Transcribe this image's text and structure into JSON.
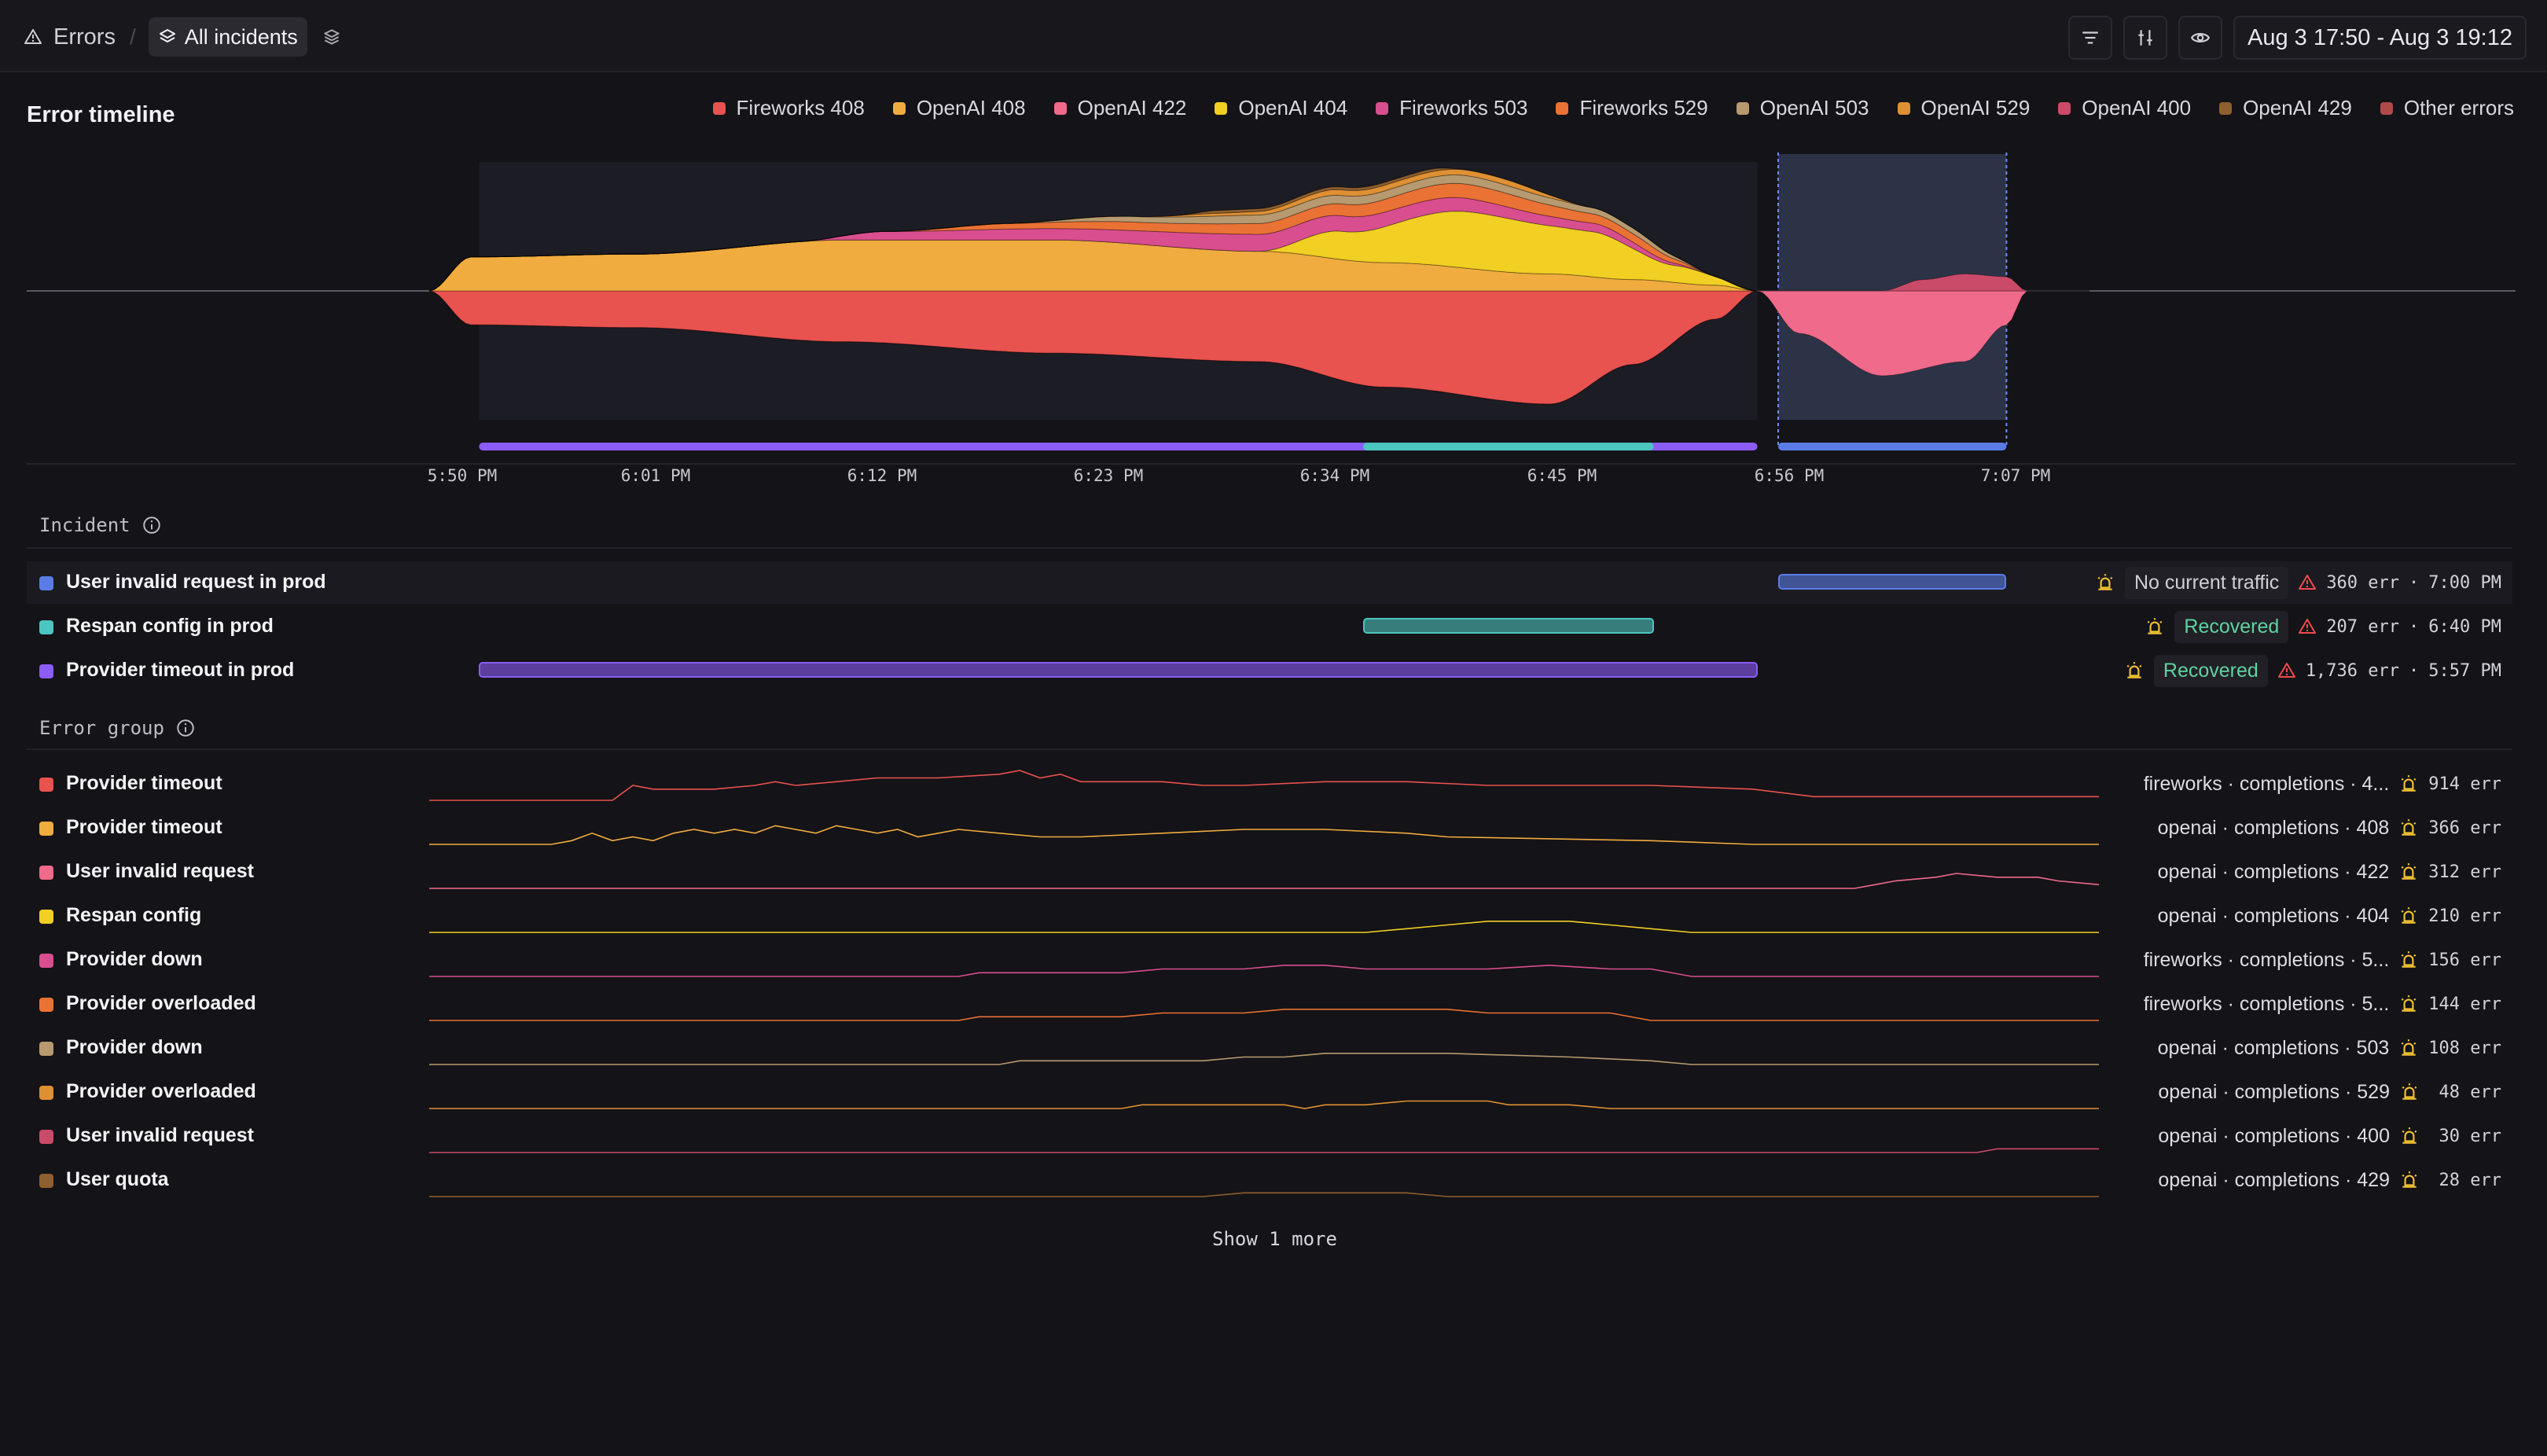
{
  "header": {
    "breadcrumb_root": "Errors",
    "incidents_pill": "All incidents",
    "time_range": "Aug 3 17:50 - Aug 3 19:12",
    "icons": [
      "warning-icon",
      "layers-icon",
      "layers-stack-icon",
      "filter-icon",
      "adjust-icon",
      "eye-icon"
    ]
  },
  "timeline": {
    "title": "Error timeline",
    "legend": [
      {
        "label": "Fireworks 408",
        "color": "#e8524f"
      },
      {
        "label": "OpenAI 408",
        "color": "#f0ac3f"
      },
      {
        "label": "OpenAI 422",
        "color": "#f06a8b"
      },
      {
        "label": "OpenAI 404",
        "color": "#f1cf23"
      },
      {
        "label": "Fireworks 503",
        "color": "#d94e8f"
      },
      {
        "label": "Fireworks 529",
        "color": "#ea7234"
      },
      {
        "label": "OpenAI 503",
        "color": "#b89a70"
      },
      {
        "label": "OpenAI 529",
        "color": "#de9033"
      },
      {
        "label": "OpenAI 400",
        "color": "#c94b69"
      },
      {
        "label": "OpenAI 429",
        "color": "#8e5f2f"
      },
      {
        "label": "Other errors",
        "color": "#b04a4a"
      }
    ],
    "x_ticks": [
      "5:50 PM",
      "6:01 PM",
      "6:12 PM",
      "6:23 PM",
      "6:34 PM",
      "6:45 PM",
      "6:56 PM",
      "7:07 PM"
    ]
  },
  "chart_data": {
    "type": "area",
    "title": "Error timeline",
    "x_start": "17:50",
    "x_end": "19:12",
    "x_tick_labels": [
      "5:50 PM",
      "6:01 PM",
      "6:12 PM",
      "6:23 PM",
      "6:34 PM",
      "6:45 PM",
      "6:56 PM",
      "7:07 PM"
    ],
    "layout": "streamgraph",
    "series": [
      {
        "name": "Fireworks 408",
        "color": "#e8524f",
        "upper": false,
        "values": [
          [
            0,
            0
          ],
          [
            2,
            12
          ],
          [
            10,
            13
          ],
          [
            20,
            18
          ],
          [
            30,
            22
          ],
          [
            40,
            25
          ],
          [
            46,
            34
          ],
          [
            54,
            40
          ],
          [
            58,
            26
          ],
          [
            62,
            10
          ],
          [
            64,
            0
          ],
          [
            80,
            0
          ]
        ]
      },
      {
        "name": "OpenAI 408",
        "color": "#f0ac3f",
        "upper": true,
        "values": [
          [
            0,
            0
          ],
          [
            2,
            12
          ],
          [
            10,
            13
          ],
          [
            20,
            18
          ],
          [
            30,
            18
          ],
          [
            40,
            14
          ],
          [
            46,
            10
          ],
          [
            54,
            6
          ],
          [
            58,
            4
          ],
          [
            62,
            2
          ],
          [
            64,
            0
          ],
          [
            80,
            0
          ]
        ]
      },
      {
        "name": "OpenAI 404",
        "color": "#f1cf23",
        "upper": true,
        "values": [
          [
            0,
            0
          ],
          [
            40,
            0
          ],
          [
            44,
            10
          ],
          [
            50,
            20
          ],
          [
            56,
            16
          ],
          [
            60,
            6
          ],
          [
            64,
            0
          ],
          [
            80,
            0
          ]
        ]
      },
      {
        "name": "Fireworks 503",
        "color": "#d94e8f",
        "upper": true,
        "values": [
          [
            0,
            0
          ],
          [
            18,
            0
          ],
          [
            22,
            3
          ],
          [
            30,
            4
          ],
          [
            40,
            6
          ],
          [
            48,
            5
          ],
          [
            56,
            3
          ],
          [
            62,
            0
          ],
          [
            80,
            0
          ]
        ]
      },
      {
        "name": "Fireworks 529",
        "color": "#ea7234",
        "upper": true,
        "values": [
          [
            0,
            0
          ],
          [
            22,
            0
          ],
          [
            28,
            2
          ],
          [
            34,
            3
          ],
          [
            42,
            4
          ],
          [
            50,
            5
          ],
          [
            58,
            3
          ],
          [
            62,
            0
          ],
          [
            80,
            0
          ]
        ]
      },
      {
        "name": "OpenAI 503",
        "color": "#b89a70",
        "upper": true,
        "values": [
          [
            0,
            0
          ],
          [
            28,
            0
          ],
          [
            34,
            2
          ],
          [
            40,
            3
          ],
          [
            50,
            3
          ],
          [
            58,
            2
          ],
          [
            62,
            0
          ],
          [
            80,
            0
          ]
        ]
      },
      {
        "name": "OpenAI 529",
        "color": "#de9033",
        "upper": true,
        "values": [
          [
            0,
            0
          ],
          [
            34,
            0
          ],
          [
            38,
            1
          ],
          [
            44,
            2
          ],
          [
            52,
            2
          ],
          [
            56,
            0
          ],
          [
            80,
            0
          ]
        ]
      },
      {
        "name": "OpenAI 429",
        "color": "#8e5f2f",
        "upper": true,
        "values": [
          [
            0,
            0
          ],
          [
            36,
            0
          ],
          [
            38,
            1
          ],
          [
            48,
            1
          ],
          [
            50,
            0
          ],
          [
            80,
            0
          ]
        ]
      },
      {
        "name": "OpenAI 422",
        "color": "#f06a8b",
        "upper": false,
        "values": [
          [
            0,
            0
          ],
          [
            64,
            0
          ],
          [
            66,
            15
          ],
          [
            70,
            30
          ],
          [
            74,
            25
          ],
          [
            76,
            12
          ],
          [
            77,
            0
          ],
          [
            80,
            0
          ]
        ]
      },
      {
        "name": "OpenAI 400",
        "color": "#c94b69",
        "upper": true,
        "values": [
          [
            0,
            0
          ],
          [
            70,
            0
          ],
          [
            72,
            4
          ],
          [
            74,
            6
          ],
          [
            76,
            5
          ],
          [
            77,
            0
          ],
          [
            80,
            0
          ]
        ]
      }
    ],
    "incident_bands": [
      {
        "name": "Provider timeout in prod",
        "start": 2.4,
        "end": 64,
        "color": "#8b5cf6"
      },
      {
        "name": "Respan config in prod",
        "start": 45,
        "end": 59,
        "color": "#4cc5c0"
      },
      {
        "name": "User invalid request in prod",
        "start": 65,
        "end": 76,
        "color": "#5b7ce6"
      }
    ]
  },
  "incidents": {
    "label": "Incident",
    "items": [
      {
        "name": "User invalid request in prod",
        "color": "#5b7ce6",
        "start": 65,
        "end": 76,
        "status": "No current traffic",
        "status_color": "#cfcfd6",
        "errors": "360 err",
        "time": "7:00 PM"
      },
      {
        "name": "Respan config in prod",
        "color": "#4cc5c0",
        "start": 45,
        "end": 59,
        "status": "Recovered",
        "status_color": "#5fd3a0",
        "errors": "207 err",
        "time": "6:40 PM"
      },
      {
        "name": "Provider timeout in prod",
        "color": "#8b5cf6",
        "start": 2.4,
        "end": 64,
        "status": "Recovered",
        "status_color": "#5fd3a0",
        "errors": "1,736 err",
        "time": "5:57 PM"
      }
    ]
  },
  "groups": {
    "label": "Error group",
    "items": [
      {
        "name": "Provider timeout",
        "color": "#e8524f",
        "source": "fireworks · completions · 4...",
        "count": "914 err",
        "spark": [
          [
            0,
            0
          ],
          [
            9,
            0
          ],
          [
            10,
            4
          ],
          [
            11,
            3
          ],
          [
            14,
            3
          ],
          [
            16,
            4
          ],
          [
            17,
            5
          ],
          [
            18,
            4
          ],
          [
            20,
            5
          ],
          [
            22,
            6
          ],
          [
            25,
            6
          ],
          [
            28,
            7
          ],
          [
            29,
            8
          ],
          [
            30,
            6
          ],
          [
            31,
            7
          ],
          [
            32,
            5
          ],
          [
            34,
            5
          ],
          [
            36,
            5
          ],
          [
            38,
            4
          ],
          [
            40,
            4
          ],
          [
            44,
            5
          ],
          [
            48,
            5
          ],
          [
            52,
            4
          ],
          [
            60,
            4
          ],
          [
            65,
            3
          ],
          [
            68,
            1
          ],
          [
            82,
            1
          ]
        ]
      },
      {
        "name": "Provider timeout",
        "color": "#f0ac3f",
        "source": "openai · completions · 408",
        "count": "366 err",
        "spark": [
          [
            0,
            0
          ],
          [
            6,
            0
          ],
          [
            7,
            1
          ],
          [
            8,
            3
          ],
          [
            9,
            1
          ],
          [
            10,
            2
          ],
          [
            11,
            1
          ],
          [
            12,
            3
          ],
          [
            13,
            4
          ],
          [
            14,
            3
          ],
          [
            15,
            4
          ],
          [
            16,
            3
          ],
          [
            17,
            5
          ],
          [
            18,
            4
          ],
          [
            19,
            3
          ],
          [
            20,
            5
          ],
          [
            21,
            4
          ],
          [
            22,
            3
          ],
          [
            23,
            4
          ],
          [
            24,
            2
          ],
          [
            25,
            3
          ],
          [
            26,
            4
          ],
          [
            28,
            3
          ],
          [
            30,
            2
          ],
          [
            32,
            2
          ],
          [
            36,
            3
          ],
          [
            40,
            4
          ],
          [
            44,
            4
          ],
          [
            48,
            3
          ],
          [
            50,
            2
          ],
          [
            60,
            1
          ],
          [
            65,
            0
          ],
          [
            82,
            0
          ]
        ]
      },
      {
        "name": "User invalid request",
        "color": "#f06a8b",
        "source": "openai · completions · 422",
        "count": "312 err",
        "spark": [
          [
            0,
            0
          ],
          [
            70,
            0
          ],
          [
            71,
            1
          ],
          [
            72,
            2
          ],
          [
            74,
            3
          ],
          [
            75,
            4
          ],
          [
            77,
            3
          ],
          [
            79,
            3
          ],
          [
            80,
            2
          ],
          [
            82,
            1
          ]
        ]
      },
      {
        "name": "Respan config",
        "color": "#f1cf23",
        "source": "openai · completions · 404",
        "count": "210 err",
        "spark": [
          [
            0,
            0
          ],
          [
            46,
            0
          ],
          [
            48,
            1
          ],
          [
            50,
            2
          ],
          [
            52,
            3
          ],
          [
            55,
            3
          ],
          [
            56,
            3
          ],
          [
            58,
            2
          ],
          [
            60,
            1
          ],
          [
            62,
            0
          ],
          [
            82,
            0
          ]
        ]
      },
      {
        "name": "Provider down",
        "color": "#d94e8f",
        "source": "fireworks · completions · 5...",
        "count": "156 err",
        "spark": [
          [
            0,
            0
          ],
          [
            26,
            0
          ],
          [
            27,
            1
          ],
          [
            34,
            1
          ],
          [
            36,
            2
          ],
          [
            40,
            2
          ],
          [
            42,
            3
          ],
          [
            44,
            3
          ],
          [
            46,
            2
          ],
          [
            52,
            2
          ],
          [
            55,
            3
          ],
          [
            58,
            2
          ],
          [
            60,
            2
          ],
          [
            62,
            0
          ],
          [
            82,
            0
          ]
        ]
      },
      {
        "name": "Provider overloaded",
        "color": "#ea7234",
        "source": "fireworks · completions · 5...",
        "count": "144 err",
        "spark": [
          [
            0,
            0
          ],
          [
            26,
            0
          ],
          [
            27,
            1
          ],
          [
            34,
            1
          ],
          [
            36,
            2
          ],
          [
            40,
            2
          ],
          [
            42,
            3
          ],
          [
            44,
            3
          ],
          [
            46,
            3
          ],
          [
            50,
            3
          ],
          [
            52,
            2
          ],
          [
            58,
            2
          ],
          [
            60,
            0
          ],
          [
            82,
            0
          ]
        ]
      },
      {
        "name": "Provider down",
        "color": "#b89a70",
        "source": "openai · completions · 503",
        "count": "108 err",
        "spark": [
          [
            0,
            0
          ],
          [
            28,
            0
          ],
          [
            29,
            1
          ],
          [
            38,
            1
          ],
          [
            40,
            2
          ],
          [
            42,
            2
          ],
          [
            44,
            3
          ],
          [
            48,
            3
          ],
          [
            50,
            3
          ],
          [
            56,
            2
          ],
          [
            60,
            1
          ],
          [
            62,
            0
          ],
          [
            82,
            0
          ]
        ]
      },
      {
        "name": "Provider overloaded",
        "color": "#de9033",
        "source": "openai · completions · 529",
        "count": "48 err",
        "spark": [
          [
            0,
            0
          ],
          [
            34,
            0
          ],
          [
            35,
            1
          ],
          [
            42,
            1
          ],
          [
            43,
            0
          ],
          [
            44,
            1
          ],
          [
            46,
            1
          ],
          [
            48,
            2
          ],
          [
            52,
            2
          ],
          [
            53,
            1
          ],
          [
            56,
            1
          ],
          [
            58,
            0
          ],
          [
            82,
            0
          ]
        ]
      },
      {
        "name": "User invalid request",
        "color": "#c94b69",
        "source": "openai · completions · 400",
        "count": "30 err",
        "spark": [
          [
            0,
            0
          ],
          [
            76,
            0
          ],
          [
            77,
            1
          ],
          [
            82,
            1
          ]
        ]
      },
      {
        "name": "User quota",
        "color": "#8e5f2f",
        "source": "openai · completions · 429",
        "count": "28 err",
        "spark": [
          [
            0,
            0
          ],
          [
            38,
            0
          ],
          [
            40,
            1
          ],
          [
            48,
            1
          ],
          [
            50,
            0
          ],
          [
            82,
            0
          ]
        ]
      }
    ],
    "show_more": "Show 1 more"
  }
}
